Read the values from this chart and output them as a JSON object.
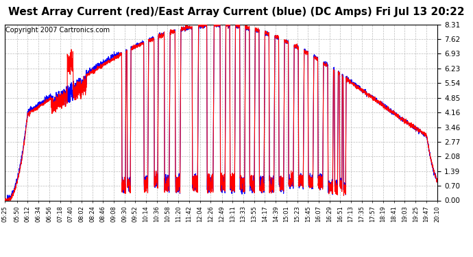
{
  "title": "West Array Current (red)/East Array Current (blue) (DC Amps) Fri Jul 13 20:22",
  "copyright": "Copyright 2007 Cartronics.com",
  "yticks": [
    0.0,
    0.7,
    1.39,
    2.08,
    2.77,
    3.46,
    4.16,
    4.85,
    5.54,
    6.23,
    6.93,
    7.62,
    8.31
  ],
  "ylim": [
    0.0,
    8.31
  ],
  "xtick_labels": [
    "05:25",
    "05:50",
    "06:12",
    "06:34",
    "06:56",
    "07:18",
    "07:40",
    "08:02",
    "08:24",
    "08:46",
    "09:08",
    "09:30",
    "09:52",
    "10:14",
    "10:36",
    "10:58",
    "11:20",
    "11:42",
    "12:04",
    "12:26",
    "12:49",
    "13:11",
    "13:33",
    "13:55",
    "14:17",
    "14:39",
    "15:01",
    "15:23",
    "15:45",
    "16:07",
    "16:29",
    "16:51",
    "17:13",
    "17:35",
    "17:57",
    "18:19",
    "18:41",
    "19:03",
    "19:25",
    "19:47",
    "20:10"
  ],
  "red_color": "#ff0000",
  "blue_color": "#0000ff",
  "bg_color": "#ffffff",
  "grid_color": "#aaaaaa",
  "title_fontsize": 11,
  "copyright_fontsize": 7
}
